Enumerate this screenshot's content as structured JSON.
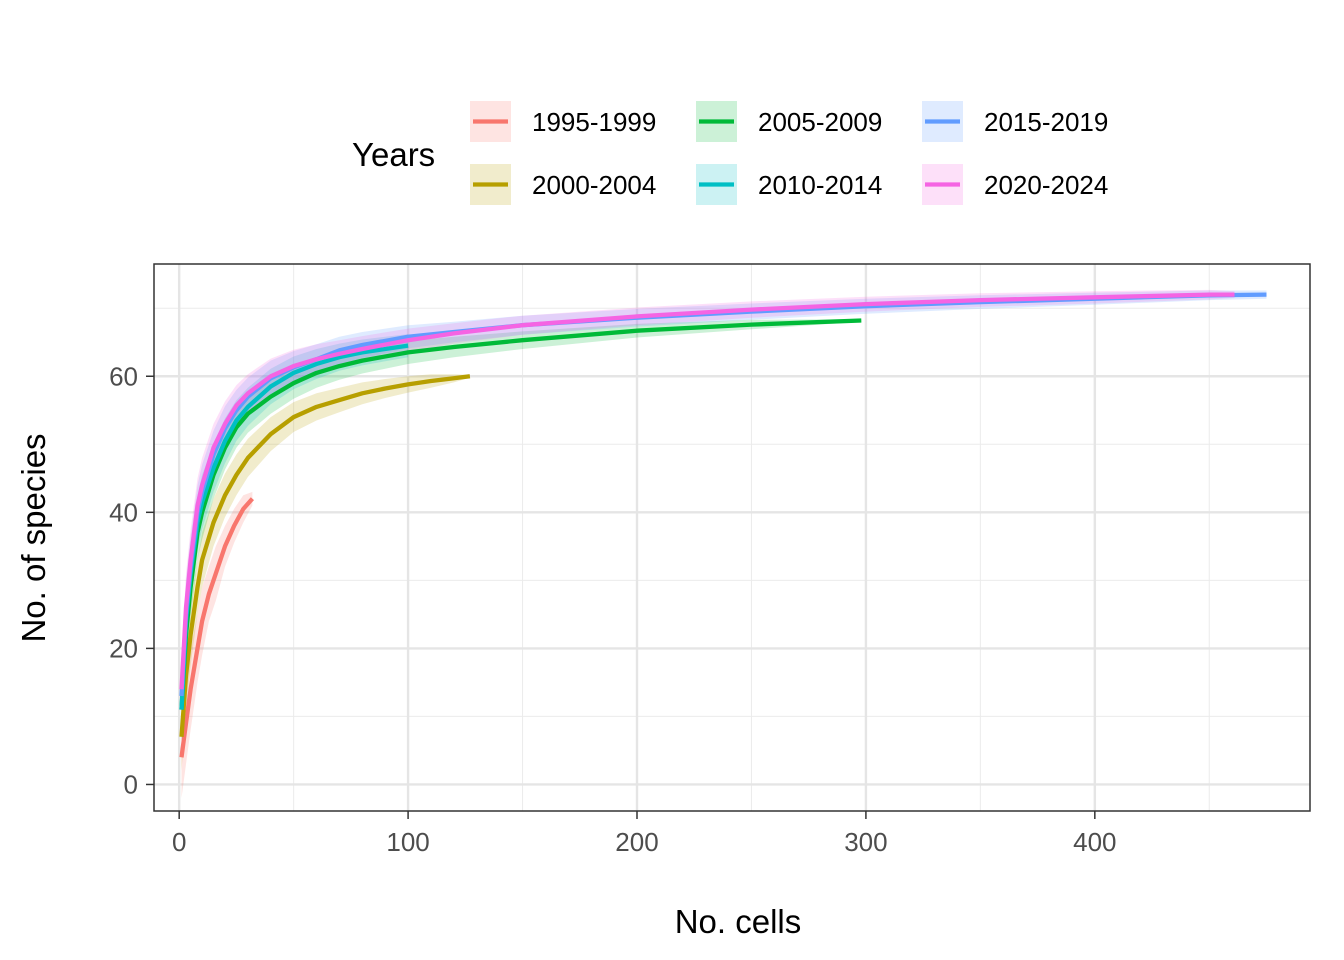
{
  "chart_data": {
    "type": "line",
    "title": "",
    "xlabel": "No. cells",
    "ylabel": "No. of species",
    "xlim": [
      -11,
      494
    ],
    "ylim": [
      -3.9,
      76.5
    ],
    "xticks": [
      0,
      100,
      200,
      300,
      400
    ],
    "yticks": [
      0,
      20,
      40,
      60
    ],
    "grid": true,
    "legend": {
      "title": "Years",
      "placement": "top"
    },
    "series": [
      {
        "name": "1995-1999",
        "color": "#F8766D",
        "x": [
          1,
          3,
          5,
          8,
          10,
          13,
          16,
          20,
          24,
          28,
          32
        ],
        "y": [
          4,
          9,
          14,
          20,
          24,
          28,
          31,
          35,
          38,
          40.5,
          42
        ],
        "band": [
          6,
          6,
          6,
          5,
          5,
          4,
          4,
          3,
          2.5,
          2,
          1
        ]
      },
      {
        "name": "2000-2004",
        "color": "#B79F00",
        "x": [
          1,
          3,
          5,
          8,
          10,
          15,
          20,
          25,
          30,
          40,
          50,
          60,
          70,
          80,
          90,
          100,
          110,
          120,
          127
        ],
        "y": [
          7,
          16,
          22,
          29,
          33,
          38.5,
          42.5,
          45.5,
          48,
          51.5,
          54,
          55.5,
          56.5,
          57.5,
          58.2,
          58.8,
          59.3,
          59.7,
          60
        ],
        "band": [
          5,
          5,
          4.5,
          4,
          4,
          3.5,
          3.2,
          3,
          2.8,
          2.5,
          2.2,
          2,
          1.8,
          1.6,
          1.4,
          1.2,
          1,
          0.6,
          0.2
        ]
      },
      {
        "name": "2005-2009",
        "color": "#00BA38",
        "x": [
          1,
          3,
          5,
          8,
          10,
          15,
          20,
          25,
          30,
          40,
          50,
          60,
          70,
          80,
          100,
          120,
          150,
          200,
          250,
          298
        ],
        "y": [
          11,
          22,
          29,
          37,
          40,
          45.5,
          49.5,
          52.5,
          54.5,
          57,
          59,
          60.5,
          61.5,
          62.3,
          63.5,
          64.3,
          65.3,
          66.7,
          67.6,
          68.2
        ],
        "band": [
          5,
          5,
          4.5,
          4,
          4,
          3.5,
          3.2,
          3,
          2.8,
          2.5,
          2.3,
          2.2,
          2,
          1.9,
          1.7,
          1.5,
          1.3,
          1,
          0.7,
          0.2
        ]
      },
      {
        "name": "2010-2014",
        "color": "#00BFC4",
        "x": [
          1,
          3,
          5,
          8,
          10,
          15,
          20,
          25,
          30,
          40,
          50,
          60,
          70,
          80,
          100
        ],
        "y": [
          11,
          24,
          31,
          38.5,
          41.5,
          46.5,
          50.5,
          53.5,
          55.5,
          58.5,
          60.5,
          61.8,
          62.8,
          63.5,
          64.5
        ],
        "band": [
          5,
          5,
          4.5,
          4,
          4,
          3.5,
          3.3,
          3,
          2.8,
          2.6,
          2.4,
          2.2,
          2,
          1.9,
          1.7
        ]
      },
      {
        "name": "2015-2019",
        "color": "#619CFF",
        "x": [
          1,
          3,
          5,
          8,
          10,
          15,
          20,
          25,
          30,
          40,
          50,
          60,
          70,
          80,
          100,
          120,
          150,
          200,
          250,
          300,
          350,
          400,
          450,
          475
        ],
        "y": [
          13,
          25,
          32,
          40,
          43,
          48.5,
          52.3,
          55,
          57,
          59.7,
          61.3,
          62.5,
          63.8,
          64.6,
          65.8,
          66.5,
          67.5,
          68.6,
          69.5,
          70.3,
          70.9,
          71.4,
          71.9,
          72
        ],
        "band": [
          5,
          5,
          4.5,
          4,
          4,
          3.5,
          3.3,
          3,
          2.8,
          2.6,
          2.4,
          2.2,
          2,
          1.9,
          1.7,
          1.5,
          1.4,
          1.3,
          1.2,
          1.1,
          1,
          0.9,
          0.7,
          0.6
        ]
      },
      {
        "name": "2020-2024",
        "color": "#F564E3",
        "x": [
          1,
          3,
          5,
          8,
          10,
          15,
          20,
          25,
          30,
          40,
          50,
          60,
          70,
          80,
          100,
          120,
          150,
          200,
          250,
          300,
          350,
          400,
          450,
          461
        ],
        "y": [
          14,
          26,
          33,
          41,
          44,
          49.5,
          53,
          55.7,
          57.5,
          60,
          61.5,
          62.5,
          63.3,
          64,
          65.3,
          66.3,
          67.5,
          68.8,
          69.8,
          70.6,
          71.2,
          71.6,
          72,
          72
        ],
        "band": [
          5,
          5,
          4.5,
          4,
          4,
          3.5,
          3.3,
          3,
          2.8,
          2.6,
          2.4,
          2.2,
          2,
          1.9,
          1.7,
          1.5,
          1.4,
          1.3,
          1.2,
          1.1,
          1,
          0.9,
          0.7,
          0.5
        ]
      }
    ]
  }
}
